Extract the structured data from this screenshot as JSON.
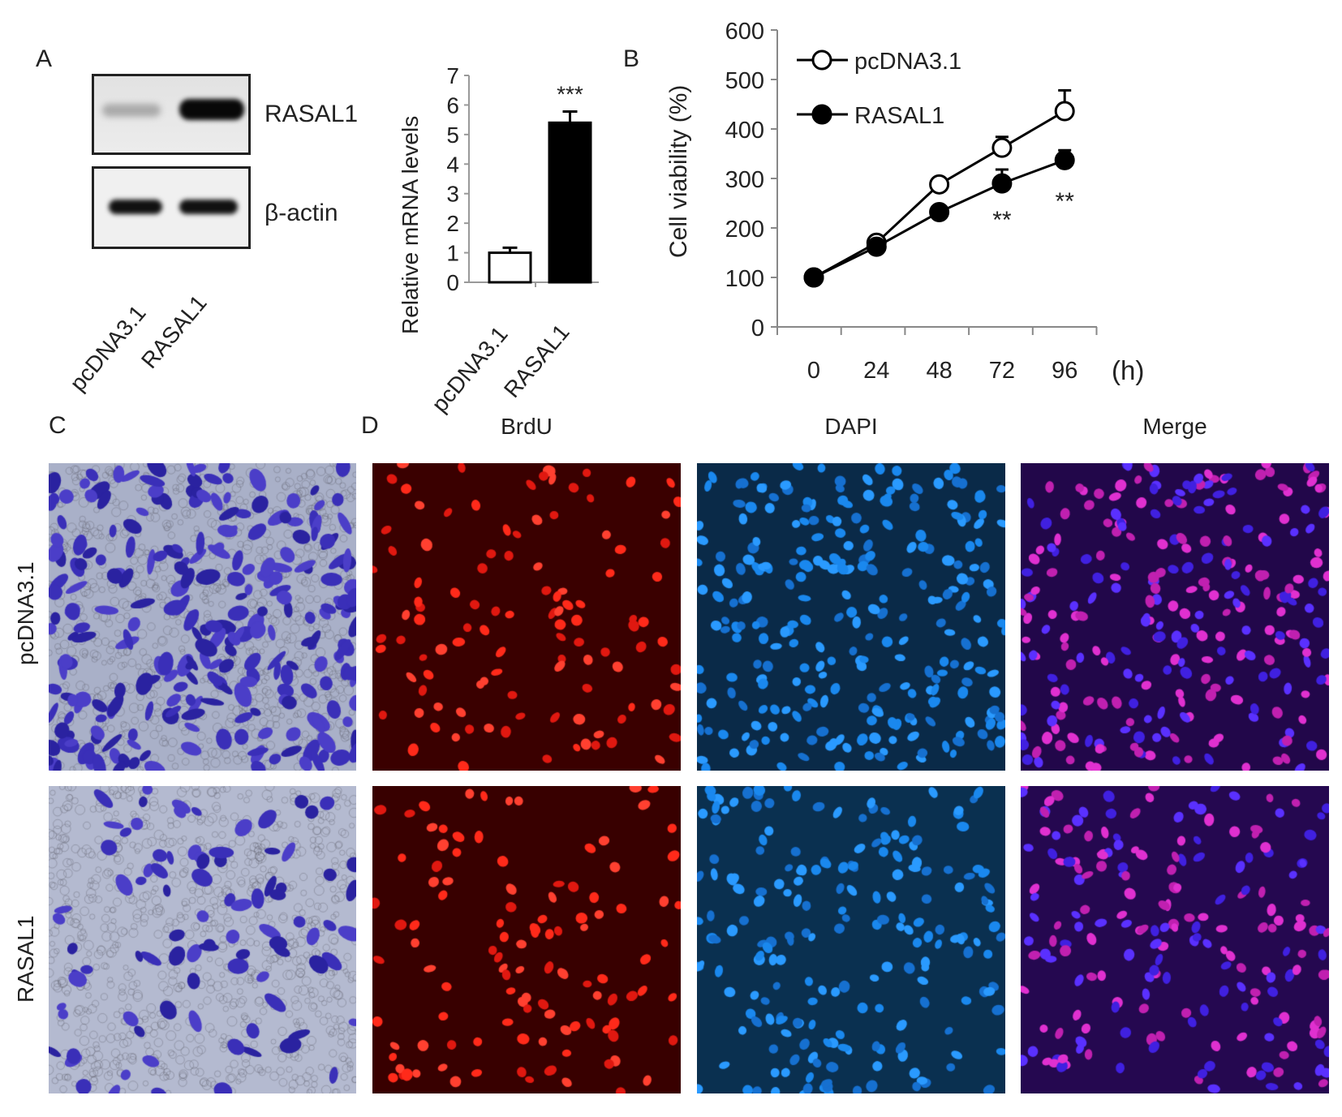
{
  "panels": {
    "A": "A",
    "B": "B",
    "C": "C",
    "D": "D"
  },
  "western_blot": {
    "bands": [
      "RASAL1",
      "β-actin"
    ],
    "lanes": [
      "pcDNA3.1",
      "RASAL1"
    ]
  },
  "chart_data": [
    {
      "type": "bar",
      "title": "",
      "ylabel": "Relative mRNA levels",
      "xlabel": "",
      "categories": [
        "pcDNA3.1",
        "RASAL1"
      ],
      "values": [
        1.0,
        5.4
      ],
      "errors": [
        0.17,
        0.38
      ],
      "colors": [
        "#ffffff",
        "#000000"
      ],
      "ylim": [
        0,
        7
      ],
      "yticks": [
        "0",
        "1",
        "2",
        "3",
        "4",
        "5",
        "6",
        "7"
      ],
      "annotations": [
        "",
        "***"
      ]
    },
    {
      "type": "line",
      "ylabel": "Cell viability (%)",
      "xlabel": "(h)",
      "x": [
        0,
        24,
        48,
        72,
        96
      ],
      "xticks": [
        "0",
        "24",
        "48",
        "72",
        "96"
      ],
      "ylim": [
        0,
        600
      ],
      "yticks": [
        "0",
        "100",
        "200",
        "300",
        "400",
        "500",
        "600"
      ],
      "legend_position": "top-left",
      "series": [
        {
          "name": "pcDNA3.1",
          "marker": "open-circle",
          "values": [
            100,
            170,
            288,
            362,
            436
          ],
          "errors": [
            0,
            8,
            10,
            22,
            42
          ]
        },
        {
          "name": "RASAL1",
          "marker": "filled-circle",
          "values": [
            100,
            162,
            232,
            290,
            337
          ],
          "errors": [
            0,
            8,
            10,
            28,
            20
          ]
        }
      ],
      "annotations": [
        {
          "x": 72,
          "text": "**"
        },
        {
          "x": 96,
          "text": "**"
        }
      ]
    }
  ],
  "microscopy": {
    "columns": [
      "BrdU",
      "DAPI",
      "Merge"
    ],
    "rows": [
      "pcDNA3.1",
      "RASAL1"
    ]
  }
}
